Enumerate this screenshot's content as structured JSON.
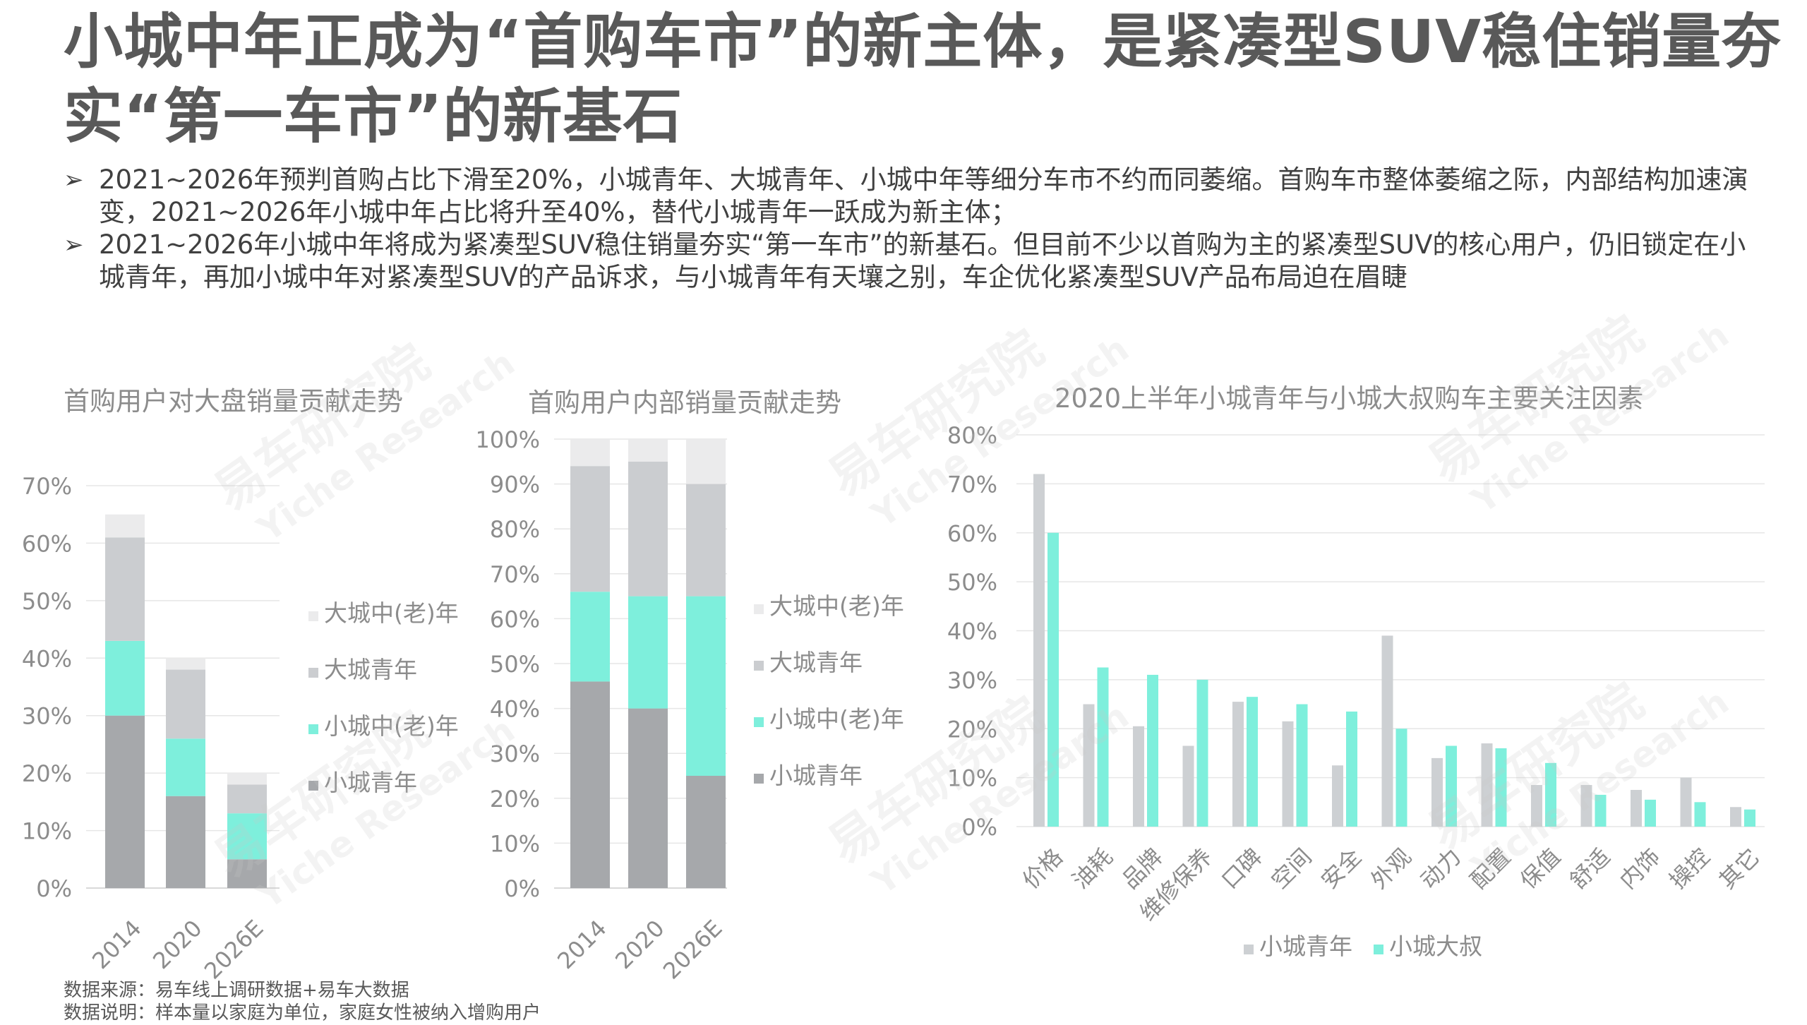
{
  "title": "小城中年正成为“首购车市”的新主体，是紧凑型SUV稳住销量夯实“第一车市”的新基石",
  "bullets": [
    "2021~2026年预判首购占比下滑至20%，小城青年、大城青年、小城中年等细分车市不约而同萎缩。首购车市整体萎缩之际，内部结构加速演变，2021~2026年小城中年占比将升至40%，替代小城青年一跃成为新主体；",
    "2021~2026年小城中年将成为紧凑型SUV稳住销量夯实“第一车市”的新基石。但目前不少以首购为主的紧凑型SUV的核心用户，仍旧锁定在小城青年，再加小城中年对紧凑型SUV的产品诉求，与小城青年有天壤之别，车企优化紧凑型SUV产品布局迫在眉睫"
  ],
  "bullet_marker": "➢",
  "watermark": {
    "cn": "易车研究院",
    "en": "Yiche Research"
  },
  "footnotes": {
    "source": "数据来源：易车线上调研数据+易车大数据",
    "note": "数据说明：样本量以家庭为单位，家庭女性被纳入增购用户"
  },
  "colors": {
    "small_city_youth": "#a6a8ab",
    "small_city_middle": "#7eefdc",
    "big_city_youth": "#cbcdd0",
    "big_city_middle": "#ebebec",
    "grey_bar": "#cdd0d3",
    "teal_bar": "#7eefdc",
    "axis_text": "#8c8c8c",
    "grid": "#e6e6e6"
  },
  "chart_data": [
    {
      "type": "bar",
      "stacked": true,
      "title": "首购用户对大盘销量贡献走势",
      "categories": [
        "2014",
        "2020",
        "2026E"
      ],
      "y_ticks": [
        "0%",
        "10%",
        "20%",
        "30%",
        "40%",
        "50%",
        "60%",
        "70%"
      ],
      "ylim": [
        0,
        70
      ],
      "series": [
        {
          "name": "小城青年",
          "values": [
            30,
            16,
            5
          ]
        },
        {
          "name": "小城中(老)年",
          "values": [
            13,
            10,
            8
          ]
        },
        {
          "name": "大城青年",
          "values": [
            18,
            12,
            5
          ]
        },
        {
          "name": "大城中(老)年",
          "values": [
            4,
            2,
            2
          ]
        }
      ],
      "legend_position": "right"
    },
    {
      "type": "bar",
      "stacked": true,
      "title": "首购用户内部销量贡献走势",
      "categories": [
        "2014",
        "2020",
        "2026E"
      ],
      "y_ticks": [
        "0%",
        "10%",
        "20%",
        "30%",
        "40%",
        "50%",
        "60%",
        "70%",
        "80%",
        "90%",
        "100%"
      ],
      "ylim": [
        0,
        100
      ],
      "series": [
        {
          "name": "小城青年",
          "values": [
            46,
            40,
            25
          ]
        },
        {
          "name": "小城中(老)年",
          "values": [
            20,
            25,
            40
          ]
        },
        {
          "name": "大城青年",
          "values": [
            28,
            30,
            25
          ]
        },
        {
          "name": "大城中(老)年",
          "values": [
            6,
            5,
            10
          ]
        }
      ],
      "legend_position": "right"
    },
    {
      "type": "bar",
      "stacked": false,
      "title": "2020上半年小城青年与小城大叔购车主要关注因素",
      "categories": [
        "价格",
        "油耗",
        "品牌",
        "维修保养",
        "口碑",
        "空间",
        "安全",
        "外观",
        "动力",
        "配置",
        "保值",
        "舒适",
        "内饰",
        "操控",
        "其它"
      ],
      "y_ticks": [
        "0%",
        "10%",
        "20%",
        "30%",
        "40%",
        "50%",
        "60%",
        "70%",
        "80%"
      ],
      "ylim": [
        0,
        80
      ],
      "series": [
        {
          "name": "小城青年",
          "values": [
            72,
            25,
            20.5,
            16.5,
            25.5,
            21.5,
            12.5,
            39,
            14,
            17,
            8.5,
            8.5,
            7.5,
            10,
            4
          ]
        },
        {
          "name": "小城大叔",
          "values": [
            60,
            32.5,
            31,
            30,
            26.5,
            25,
            23.5,
            20,
            16.5,
            16,
            13,
            6.5,
            5.5,
            5,
            3.5
          ]
        }
      ],
      "legend_position": "bottom"
    }
  ]
}
